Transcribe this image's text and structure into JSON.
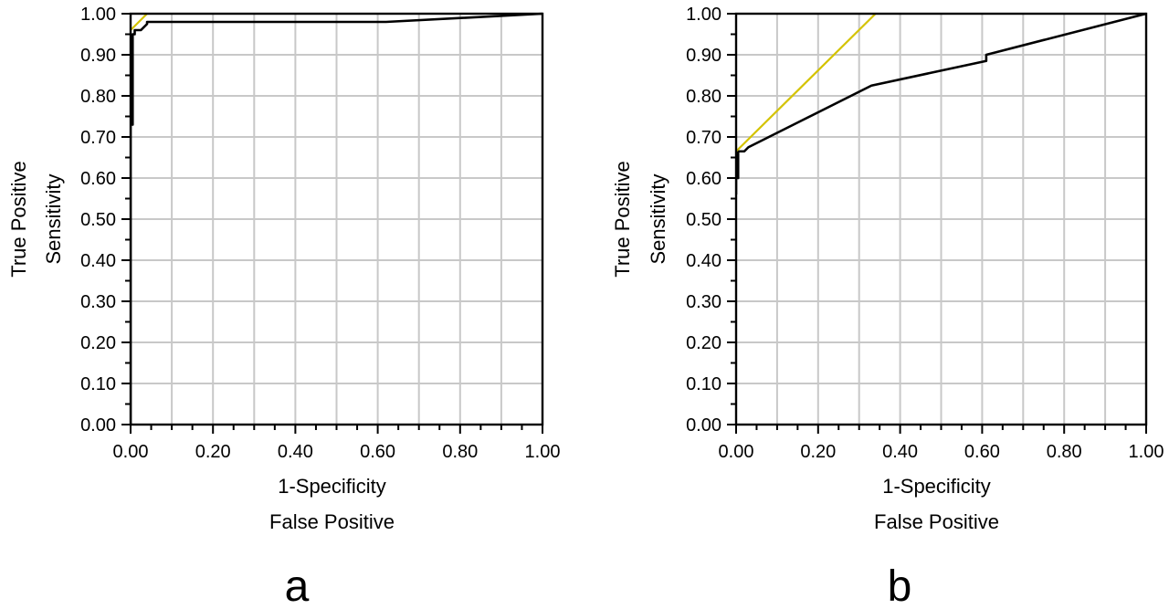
{
  "colors": {
    "roc_curve": "#000000",
    "reference_line": "#d4c300",
    "grid": "#c8c8c8",
    "frame": "#000000",
    "background": "#ffffff"
  },
  "chart_data": [
    {
      "type": "line",
      "panel_label": "a",
      "xlabel": [
        "1-Specificity",
        "False Positive"
      ],
      "ylabel": [
        "True Positive",
        "Sensitivity"
      ],
      "xlim": [
        0,
        1
      ],
      "ylim": [
        0,
        1
      ],
      "x_ticks": [
        "0.00",
        "0.20",
        "0.40",
        "0.60",
        "0.80",
        "1.00"
      ],
      "y_ticks": [
        "0.00",
        "0.10",
        "0.20",
        "0.30",
        "0.40",
        "0.50",
        "0.60",
        "0.70",
        "0.80",
        "0.90",
        "1.00"
      ],
      "grid": true,
      "series": [
        {
          "role": "roc_curve",
          "x": [
            0.0,
            0.0,
            0.005,
            0.005,
            0.01,
            0.01,
            0.025,
            0.04,
            0.04,
            0.62,
            1.0
          ],
          "y": [
            0.0,
            0.73,
            0.73,
            0.95,
            0.95,
            0.96,
            0.96,
            0.975,
            0.98,
            0.98,
            1.0
          ]
        },
        {
          "role": "reference_line",
          "x": [
            0.0,
            0.04
          ],
          "y": [
            0.96,
            1.0
          ]
        }
      ]
    },
    {
      "type": "line",
      "panel_label": "b",
      "xlabel": [
        "1-Specificity",
        "False Positive"
      ],
      "ylabel": [
        "True Positive",
        "Sensitivity"
      ],
      "xlim": [
        0,
        1
      ],
      "ylim": [
        0,
        1
      ],
      "x_ticks": [
        "0.00",
        "0.20",
        "0.40",
        "0.60",
        "0.80",
        "1.00"
      ],
      "y_ticks": [
        "0.00",
        "0.10",
        "0.20",
        "0.30",
        "0.40",
        "0.50",
        "0.60",
        "0.70",
        "0.80",
        "0.90",
        "1.00"
      ],
      "grid": true,
      "series": [
        {
          "role": "roc_curve",
          "x": [
            0.0,
            0.0,
            0.005,
            0.005,
            0.02,
            0.03,
            0.16,
            0.33,
            0.61,
            0.61,
            1.0
          ],
          "y": [
            0.56,
            0.6,
            0.6,
            0.665,
            0.665,
            0.675,
            0.74,
            0.825,
            0.885,
            0.9,
            1.0
          ]
        },
        {
          "role": "reference_line",
          "x": [
            0.0,
            0.34
          ],
          "y": [
            0.665,
            1.0
          ]
        }
      ]
    }
  ]
}
